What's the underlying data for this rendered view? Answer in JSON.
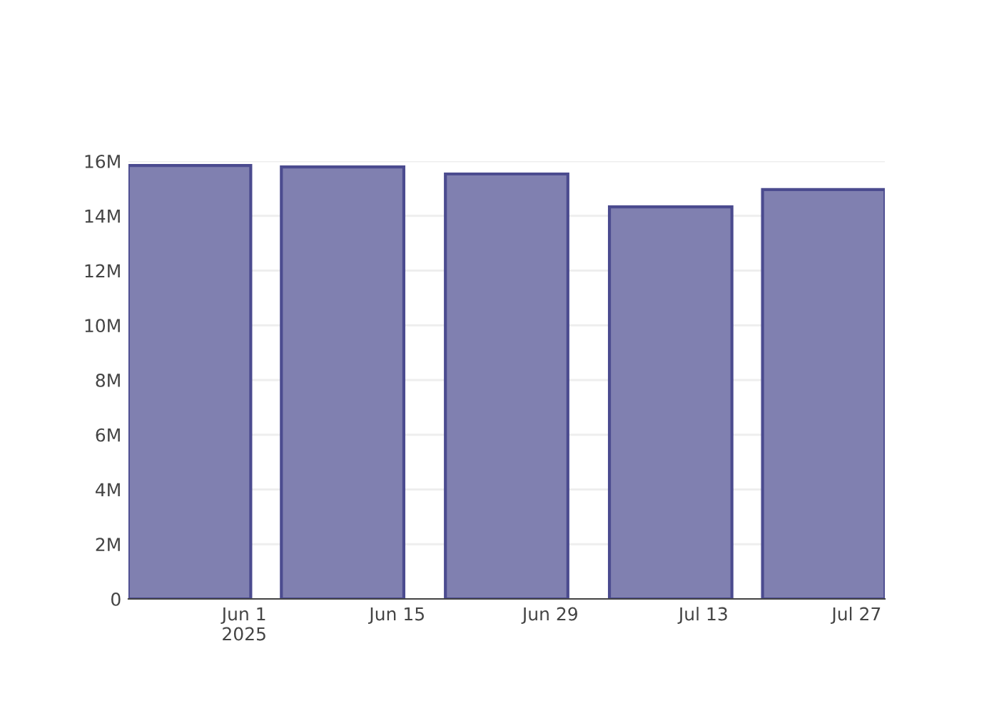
{
  "chart_data": {
    "type": "bar",
    "x": [
      "2025-05-27",
      "2025-06-10",
      "2025-06-25",
      "2025-07-10",
      "2025-07-24"
    ],
    "series": [
      {
        "color": "#8080b0",
        "values": [
          15840000,
          15790000,
          15530000,
          14330000,
          14960000
        ]
      }
    ],
    "xlim": [
      "2025-05-21T10:00",
      "2025-07-29T14:00"
    ],
    "xticks": [
      {
        "value": "2025-06-01",
        "label": "Jun 1\n2025"
      },
      {
        "value": "2025-06-15",
        "label": "Jun 15"
      },
      {
        "value": "2025-06-29",
        "label": "Jun 29"
      },
      {
        "value": "2025-07-13",
        "label": "Jul 13"
      },
      {
        "value": "2025-07-27",
        "label": "Jul 27"
      }
    ],
    "ylim": [
      0,
      16000000
    ],
    "yticks": [
      {
        "value": 0,
        "label": "0"
      },
      {
        "value": 2000000,
        "label": "2M"
      },
      {
        "value": 4000000,
        "label": "4M"
      },
      {
        "value": 6000000,
        "label": "6M"
      },
      {
        "value": 8000000,
        "label": "8M"
      },
      {
        "value": 10000000,
        "label": "10M"
      },
      {
        "value": 12000000,
        "label": "12M"
      },
      {
        "value": 14000000,
        "label": "14M"
      },
      {
        "value": 16000000,
        "label": "16M"
      }
    ],
    "grid": "y"
  }
}
